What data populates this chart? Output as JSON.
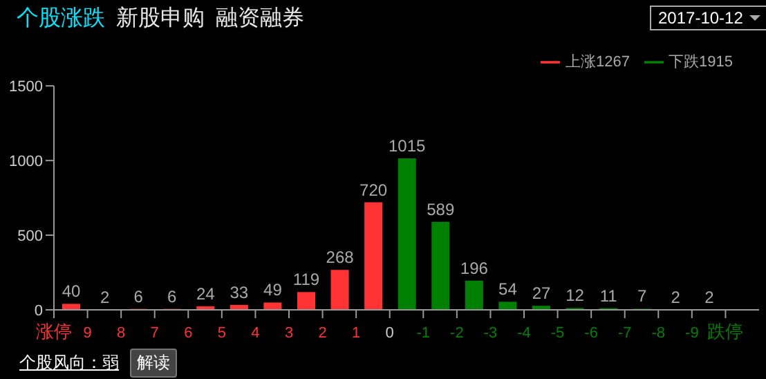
{
  "chart_data": {
    "type": "histogram",
    "title": "个股涨跌",
    "annotations": [
      "新股申购",
      "融资融券",
      "2017-10-12",
      "个股风向：弱",
      "解读"
    ],
    "bins": [
      10,
      9,
      8,
      7,
      6,
      5,
      4,
      3,
      2,
      1,
      0,
      -1,
      -2,
      -3,
      -4,
      -5,
      -6,
      -7,
      -8,
      -9,
      -10
    ],
    "series": [
      {
        "name": "上涨1267",
        "color": "#ff3333",
        "values": [
          40,
          2,
          6,
          6,
          24,
          33,
          49,
          119,
          268,
          720,
          null,
          null,
          null,
          null,
          null,
          null,
          null,
          null,
          null,
          null
        ]
      },
      {
        "name": "下跌1915",
        "color": "#008000",
        "values": [
          null,
          null,
          null,
          null,
          null,
          null,
          null,
          null,
          null,
          null,
          1015,
          589,
          196,
          54,
          27,
          12,
          11,
          7,
          2,
          2
        ]
      }
    ],
    "xlim": [
      10,
      -11
    ],
    "xticks": [
      {
        "value": 10,
        "label": "涨停"
      },
      9,
      8,
      7,
      6,
      5,
      4,
      3,
      2,
      1,
      0,
      -1,
      -2,
      -3,
      -4,
      -5,
      -6,
      -7,
      -8,
      -9,
      {
        "value": -10,
        "label": "跌停"
      }
    ],
    "ylim": [
      0,
      1500
    ],
    "yticks": [
      0,
      500,
      1000,
      1500
    ],
    "grid": false,
    "legend": "top right",
    "data_labels": true
  }
}
